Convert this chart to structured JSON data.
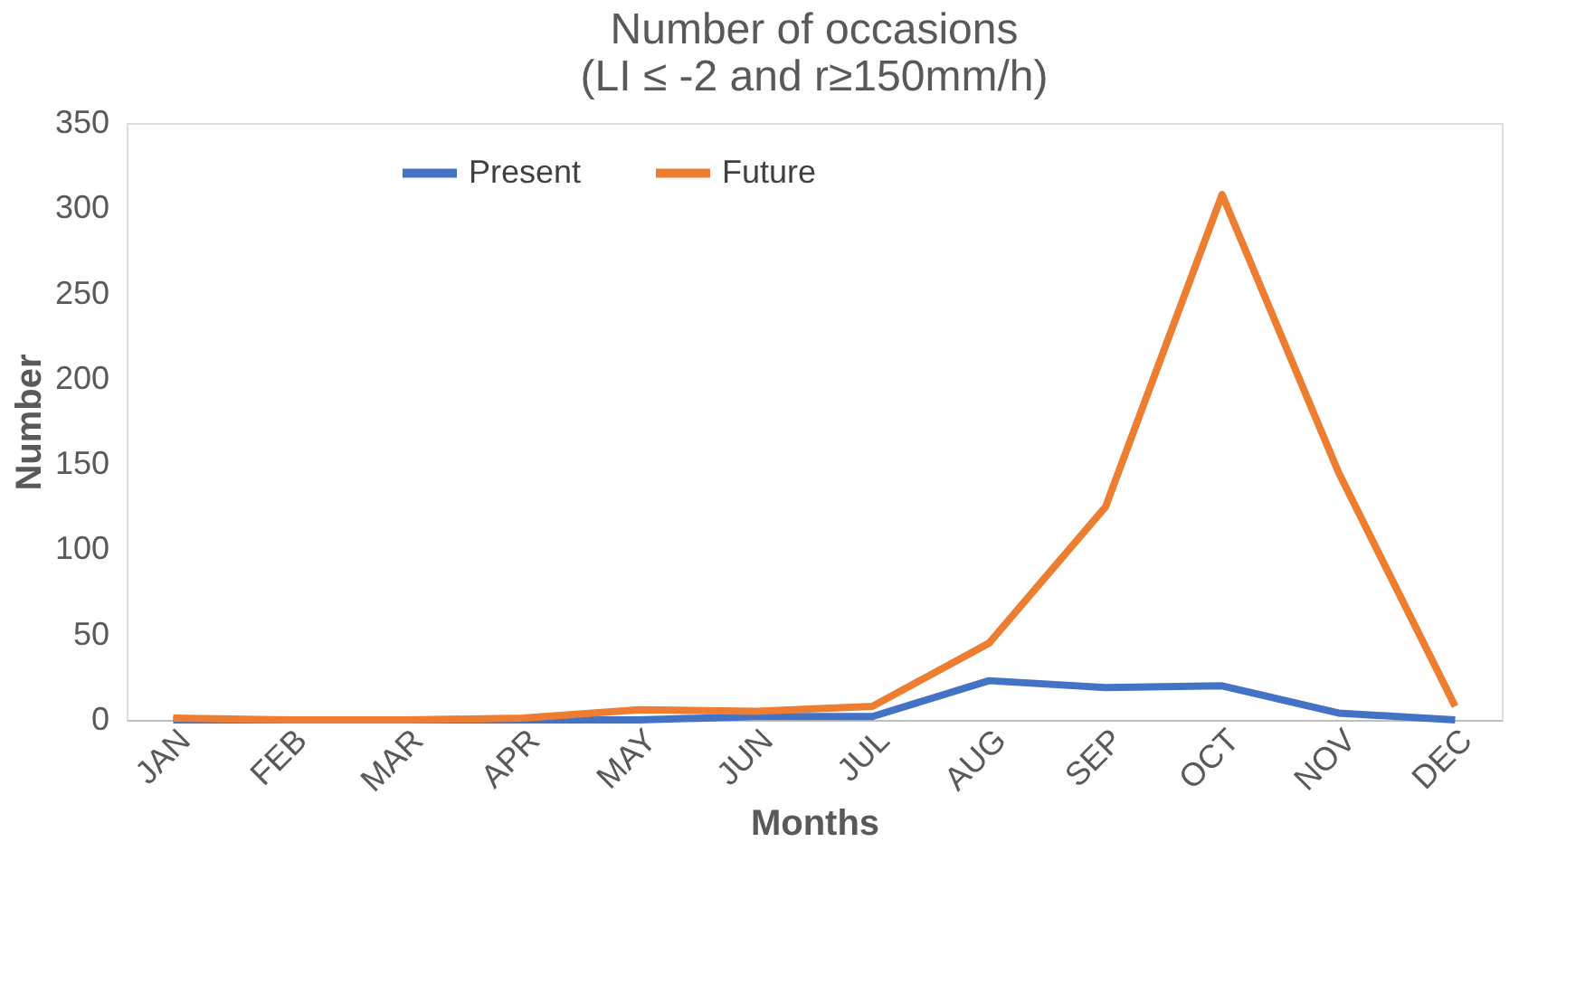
{
  "chart_data": {
    "type": "line",
    "title": "Number of occasions\n(LI ≤ -2 and r≥150mm/h)",
    "xlabel": "Months",
    "ylabel": "Number",
    "categories": [
      "JAN",
      "FEB",
      "MAR",
      "APR",
      "MAY",
      "JUN",
      "JUL",
      "AUG",
      "SEP",
      "OCT",
      "NOV",
      "DEC"
    ],
    "series": [
      {
        "name": "Present",
        "color": "#4472c4",
        "values": [
          0,
          0,
          0,
          0,
          0,
          2,
          2,
          23,
          19,
          20,
          4,
          0
        ]
      },
      {
        "name": "Future",
        "color": "#ed7d31",
        "values": [
          1,
          0,
          0,
          1,
          6,
          5,
          8,
          45,
          125,
          308,
          145,
          8
        ]
      }
    ],
    "ylim": [
      0,
      350
    ],
    "yticks": [
      0,
      50,
      100,
      150,
      200,
      250,
      300,
      350
    ],
    "grid": false,
    "legend": "top",
    "marker": "none",
    "line_style": "solid"
  }
}
